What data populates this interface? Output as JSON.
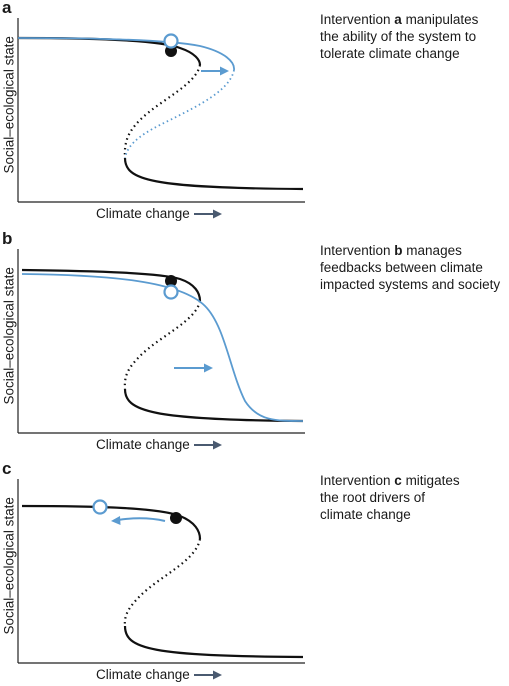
{
  "colors": {
    "black": "#111111",
    "blue": "#5b9bd0",
    "axis": "#222222"
  },
  "panels": [
    {
      "letter": "a",
      "ylabel": "Social–ecological state",
      "xlabel": "Climate change",
      "caption": {
        "pre": "Intervention ",
        "bold": "a",
        "post": " manipulates",
        "line2": "the ability of the system to",
        "line3": "tolerate climate change"
      }
    },
    {
      "letter": "b",
      "ylabel": "Social–ecological state",
      "xlabel": "Climate change",
      "caption": {
        "pre": "Intervention ",
        "bold": "b",
        "post": " manages",
        "line2": "feedbacks between climate",
        "line3": "impacted systems and society"
      }
    },
    {
      "letter": "c",
      "ylabel": "Social–ecological state",
      "xlabel": "Climate change",
      "caption": {
        "pre": "Intervention ",
        "bold": "c",
        "post": " mitigates",
        "line2": "the root drivers of",
        "line3": "climate change"
      }
    }
  ]
}
